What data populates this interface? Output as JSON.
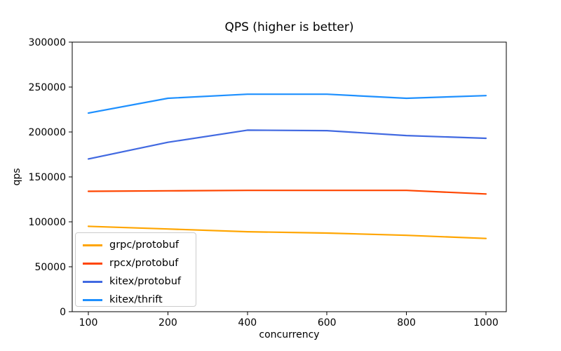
{
  "chart_data": {
    "type": "line",
    "title": "QPS (higher is better)",
    "xlabel": "concurrency",
    "ylabel": "qps",
    "categories": [
      100,
      200,
      400,
      600,
      800,
      1000
    ],
    "x_tick_labels": [
      "100",
      "200",
      "400",
      "600",
      "800",
      "1000"
    ],
    "y_tick_labels": [
      "0",
      "50000",
      "100000",
      "150000",
      "200000",
      "250000",
      "300000"
    ],
    "yticks": [
      0,
      50000,
      100000,
      150000,
      200000,
      250000,
      300000
    ],
    "ylim": [
      0,
      300000
    ],
    "grid": false,
    "legend_position": "lower left",
    "axis_color": "#000000",
    "series": [
      {
        "name": "grpc/protobuf",
        "color": "#FFA500",
        "values": [
          95000,
          92000,
          89000,
          87500,
          85000,
          81500
        ]
      },
      {
        "name": "rpcx/protobuf",
        "color": "#FF4500",
        "values": [
          134000,
          134500,
          135000,
          135000,
          135000,
          131000
        ]
      },
      {
        "name": "kitex/protobuf",
        "color": "#4169E1",
        "values": [
          170000,
          188500,
          202000,
          201500,
          196000,
          193000
        ]
      },
      {
        "name": "kitex/thrift",
        "color": "#1E90FF",
        "values": [
          221000,
          237500,
          242000,
          242000,
          237500,
          240500
        ]
      }
    ]
  }
}
